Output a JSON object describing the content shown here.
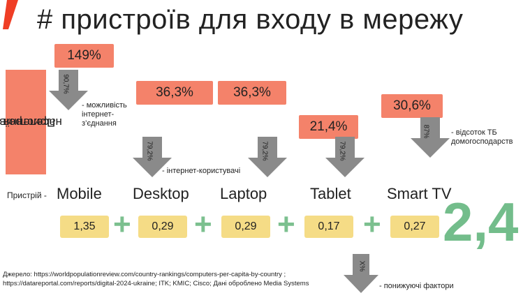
{
  "title": "# пристроїв для входу в мережу",
  "side_label_line1": "Пристроїв до",
  "side_label_line2": "населення",
  "device_row_label": "Пристрій -",
  "devices": [
    {
      "name": "Mobile",
      "penetration": "149%",
      "arrow_pct": "90,7%",
      "value": "1,35"
    },
    {
      "name": "Desktop",
      "penetration": "36,3%",
      "arrow_pct": "79,2%",
      "value": "0,29"
    },
    {
      "name": "Laptop",
      "penetration": "36,3%",
      "arrow_pct": "79,2%",
      "value": "0,29"
    },
    {
      "name": "Tablet",
      "penetration": "21,4%",
      "arrow_pct": "79,2%",
      "value": "0,17"
    },
    {
      "name": "Smart TV",
      "penetration": "30,6%",
      "arrow_pct": "87%",
      "value": "0,27"
    }
  ],
  "notes": {
    "mobile": [
      "- можливість",
      "інтернет-",
      "з’єднання"
    ],
    "desktop": "- інтернет-користувачі",
    "tv": [
      "- відсоток ТБ",
      "домогосподарств"
    ]
  },
  "plus_sign": "+",
  "total": "2,4",
  "bottom_arrow_label": "X%",
  "bottom_note": "- понижуючі фактори",
  "source_line1": "Джерело: https://worldpopulationreview.com/country-rankings/computers-per-capita-by-country ;",
  "source_line2": "https://datareportal.com/reports/digital-2024-ukraine; ITK; KMIC; Cisco; Дані оброблено Media Systems",
  "colors": {
    "accent_orange": "#f4826a",
    "value_yellow": "#f5dc86",
    "total_green": "#73bd8b",
    "arrow_gray": "#8a8a8a",
    "logo_red": "#ef3e25"
  }
}
